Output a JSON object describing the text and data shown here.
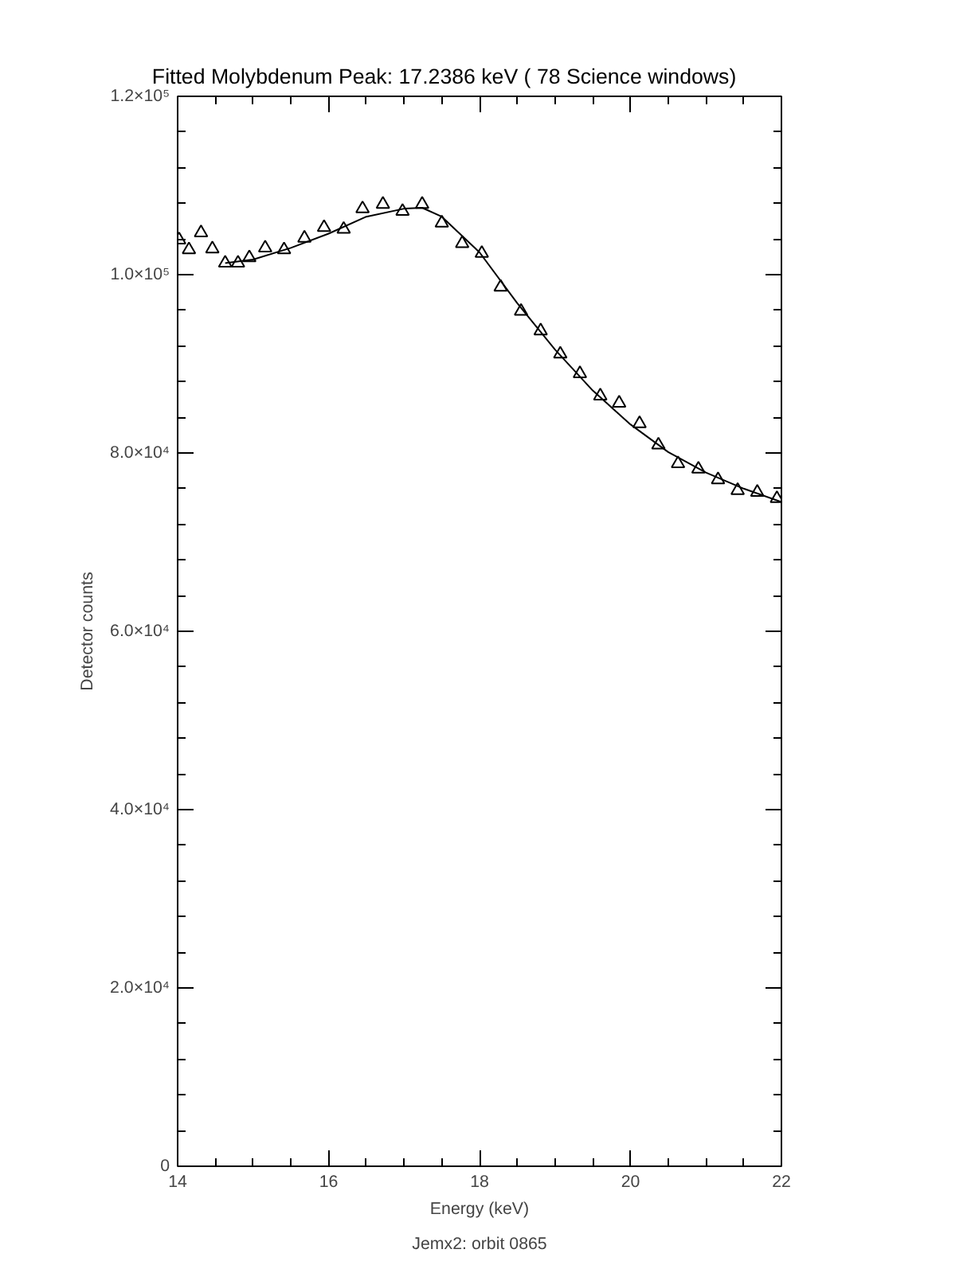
{
  "chart_data": {
    "type": "scatter",
    "title": "Fitted Molybdenum Peak:        17.2386 keV (      78 Science windows)",
    "xlabel": "Energy (keV)",
    "ylabel": "Detector counts",
    "annotations": [
      "Jemx2: orbit 0865"
    ],
    "xlim": [
      14,
      22
    ],
    "ylim": [
      0,
      120000
    ],
    "xticks": [
      14,
      16,
      18,
      20,
      22
    ],
    "yticks": [
      0,
      {
        "value": 20000,
        "label": "2.0×10⁴"
      },
      {
        "value": 40000,
        "label": "4.0×10⁴"
      },
      {
        "value": 60000,
        "label": "6.0×10⁴"
      },
      {
        "value": 80000,
        "label": "8.0×10⁴"
      },
      {
        "value": 100000,
        "label": "1.0×10⁵"
      },
      {
        "value": 120000,
        "label": "1.2×10⁵"
      }
    ],
    "grid": false,
    "series": [
      {
        "marker": "triangle",
        "color": "#000000",
        "x": [
          14.02,
          14.15,
          14.31,
          14.46,
          14.63,
          14.8,
          14.95,
          15.16,
          15.41,
          15.68,
          15.94,
          16.2,
          16.45,
          16.72,
          16.98,
          17.24,
          17.5,
          17.77,
          18.03,
          18.28,
          18.55,
          18.81,
          19.07,
          19.33,
          19.6,
          19.85,
          20.12,
          20.37,
          20.63,
          20.9,
          21.16,
          21.42,
          21.68,
          21.94
        ],
        "values": [
          103900,
          102800,
          104700,
          102900,
          101300,
          101300,
          101900,
          103000,
          102800,
          104100,
          105300,
          105100,
          107400,
          107900,
          107100,
          107900,
          105800,
          103500,
          102400,
          98600,
          95900,
          93700,
          91100,
          88900,
          86400,
          85600,
          83300,
          80900,
          78800,
          78200,
          77000,
          75800,
          75600,
          74900
        ]
      },
      {
        "type": "line",
        "line_style": "solid",
        "color": "#000000",
        "x": [
          14.63,
          15.0,
          15.5,
          16.0,
          16.5,
          17.0,
          17.24,
          17.5,
          18.0,
          18.5,
          19.0,
          19.5,
          20.0,
          20.5,
          21.0,
          21.5,
          22.0
        ],
        "values": [
          101300,
          101700,
          103000,
          104600,
          106500,
          107400,
          107500,
          106500,
          102500,
          96800,
          91600,
          87000,
          83200,
          80100,
          77800,
          76000,
          74500
        ]
      }
    ]
  }
}
